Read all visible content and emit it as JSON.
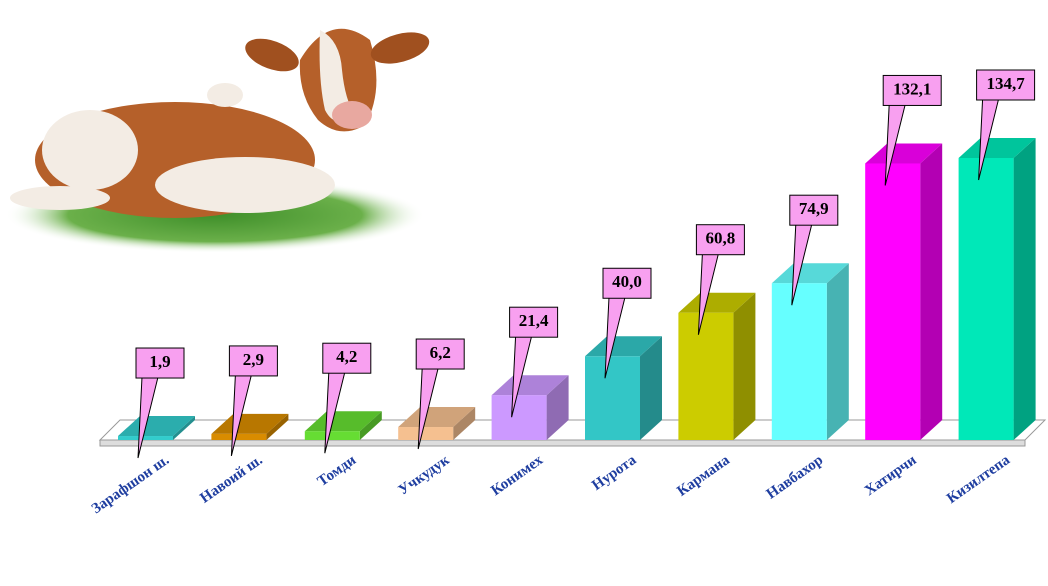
{
  "chart_data": {
    "type": "bar3d",
    "categories": [
      "Зарафшон ш.",
      "Навоий ш.",
      "Томди",
      "Учкудук",
      "Конимех",
      "Нурота",
      "Кармана",
      "Навбахор",
      "Хатирчи",
      "Кизилтепа"
    ],
    "values": [
      1.9,
      2.9,
      4.2,
      6.2,
      21.4,
      40.0,
      60.8,
      74.9,
      132.1,
      134.7
    ],
    "value_labels": [
      "1,9",
      "2,9",
      "4,2",
      "6,2",
      "21,4",
      "40,0",
      "60,8",
      "74,9",
      "132,1",
      "134,7"
    ],
    "colors": [
      "#33cccc",
      "#d98c00",
      "#66dd33",
      "#f5c090",
      "#cc99ff",
      "#33c6c6",
      "#cccc00",
      "#66ffff",
      "#ff00ff",
      "#00e8b8"
    ]
  }
}
